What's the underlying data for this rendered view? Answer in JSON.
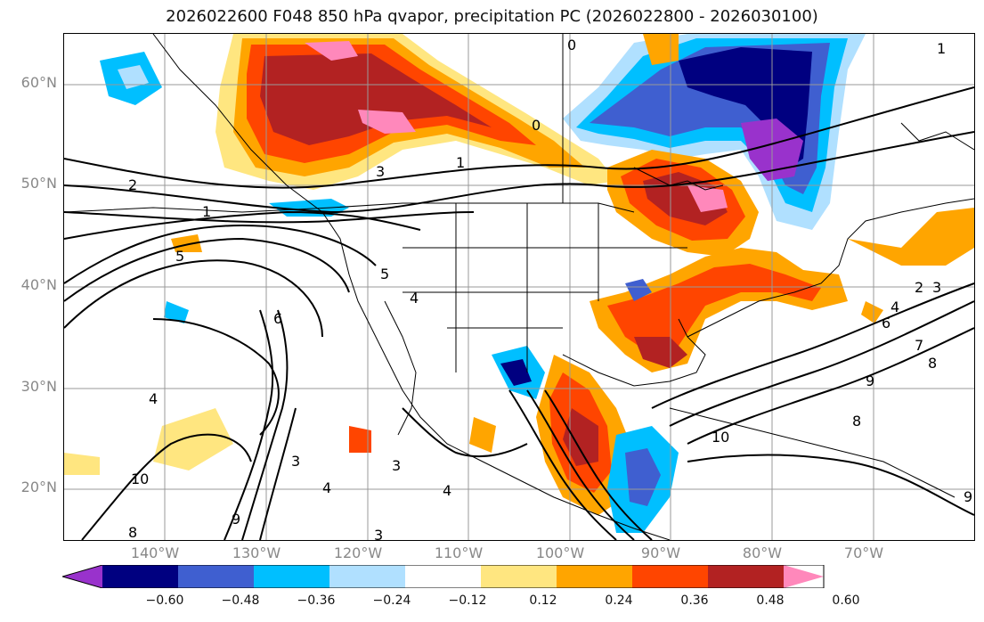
{
  "title": "2026022600 F048 850 hPa qvapor, precipitation PC (2026022800 - 2026030100)",
  "lat_labels": [
    "60°N",
    "50°N",
    "40°N",
    "30°N",
    "20°N"
  ],
  "lon_labels": [
    "140°W",
    "130°W",
    "120°W",
    "110°W",
    "100°W",
    "90°W",
    "80°W",
    "70°W"
  ],
  "colorbar": {
    "labels": [
      "−0.60",
      "−0.48",
      "−0.36",
      "−0.24",
      "−0.12",
      "0.12",
      "0.24",
      "0.36",
      "0.48",
      "0.60"
    ],
    "colors": [
      "#9932cc",
      "#000080",
      "#3f5fd0",
      "#00bfff",
      "#b0e0ff",
      "#ffffff",
      "#ffe680",
      "#ffa500",
      "#ff4500",
      "#b22222",
      "#ff88bb"
    ]
  },
  "contour_labels": [
    "0",
    "1",
    "1",
    "2",
    "3",
    "5",
    "5",
    "4",
    "6",
    "4",
    "3",
    "4",
    "3",
    "10",
    "9",
    "8",
    "3",
    "10",
    "9",
    "8",
    "2",
    "3",
    "4",
    "6",
    "7",
    "8",
    "9",
    "0",
    "1",
    "4"
  ]
}
